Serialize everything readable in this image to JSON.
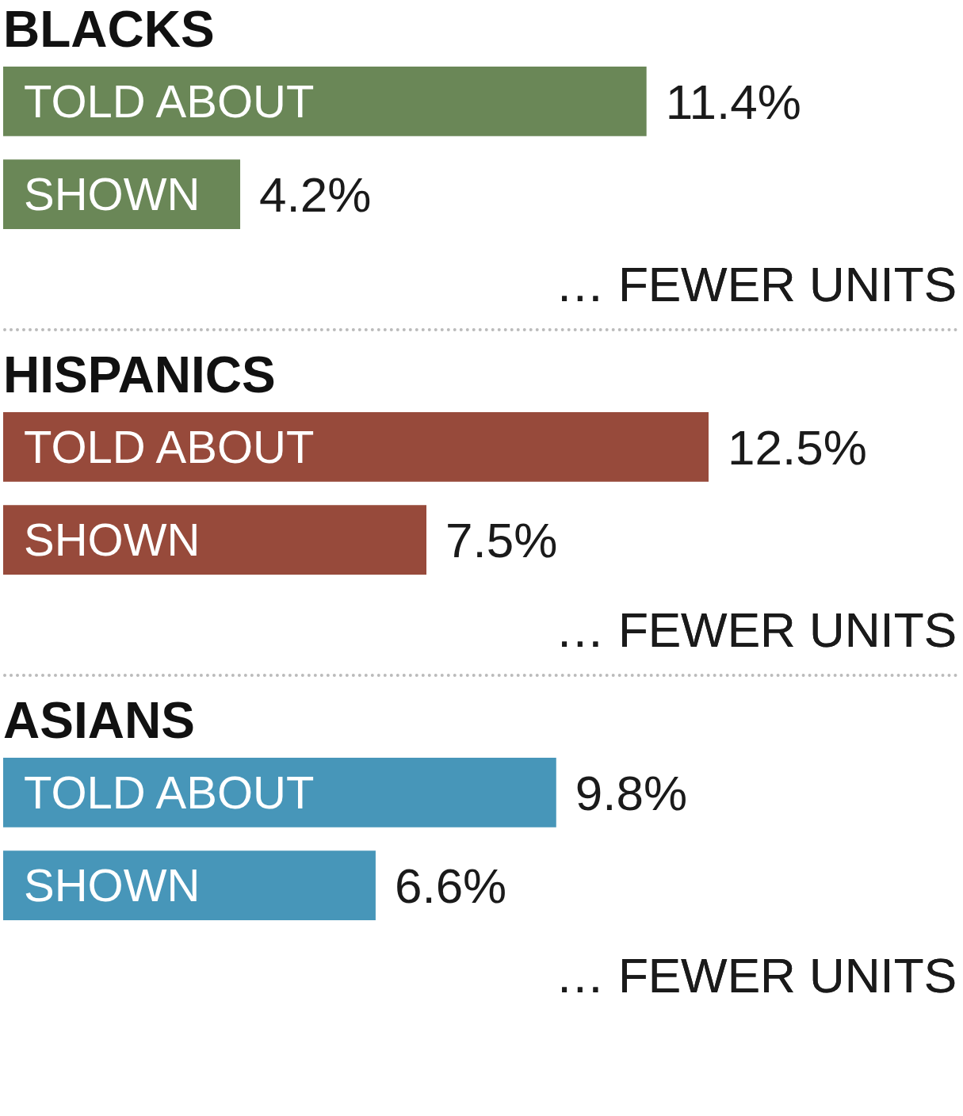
{
  "chart_data": [
    {
      "type": "bar",
      "orientation": "horizontal",
      "title": "BLACKS",
      "categories": [
        "TOLD ABOUT",
        "SHOWN"
      ],
      "values": [
        11.4,
        4.2
      ],
      "value_labels": [
        "11.4%",
        "4.2%"
      ],
      "color": "#6a8757",
      "annotations": [
        "… FEWER UNITS"
      ]
    },
    {
      "type": "bar",
      "orientation": "horizontal",
      "title": "HISPANICS",
      "categories": [
        "TOLD ABOUT",
        "SHOWN"
      ],
      "values": [
        12.5,
        7.5
      ],
      "value_labels": [
        "12.5%",
        "7.5%"
      ],
      "color": "#974a3b",
      "annotations": [
        "… FEWER UNITS"
      ]
    },
    {
      "type": "bar",
      "orientation": "horizontal",
      "title": "ASIANS",
      "categories": [
        "TOLD ABOUT",
        "SHOWN"
      ],
      "values": [
        9.8,
        6.6
      ],
      "value_labels": [
        "9.8%",
        "6.6%"
      ],
      "color": "#4796b9",
      "annotations": [
        "… FEWER UNITS"
      ]
    }
  ]
}
